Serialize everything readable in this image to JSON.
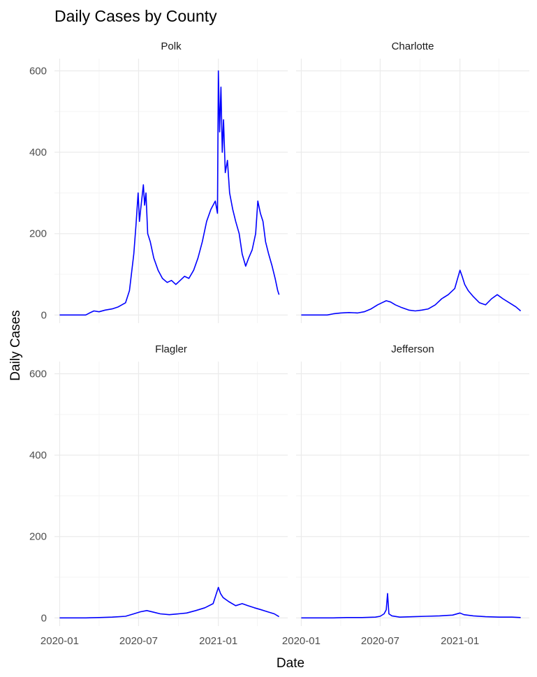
{
  "chart_data": {
    "type": "line",
    "title": "Daily Cases by County",
    "xlabel": "Date",
    "ylabel": "Daily Cases",
    "x_ticks": [
      "2020-01",
      "2020-07",
      "2021-01"
    ],
    "y_ticks": [
      0,
      200,
      400,
      600
    ],
    "xlim": [
      "2019-12-20",
      "2021-06-10"
    ],
    "ylim": [
      -20,
      630
    ],
    "facet_layout": "2x2",
    "grid": true,
    "line_color": "#0000ff",
    "panels": [
      {
        "name": "Polk",
        "points": [
          [
            "2020-01-01",
            0
          ],
          [
            "2020-03-01",
            0
          ],
          [
            "2020-03-10",
            5
          ],
          [
            "2020-03-20",
            10
          ],
          [
            "2020-04-01",
            8
          ],
          [
            "2020-04-15",
            12
          ],
          [
            "2020-05-01",
            15
          ],
          [
            "2020-05-15",
            20
          ],
          [
            "2020-06-01",
            30
          ],
          [
            "2020-06-10",
            60
          ],
          [
            "2020-06-20",
            150
          ],
          [
            "2020-06-25",
            220
          ],
          [
            "2020-06-30",
            300
          ],
          [
            "2020-07-03",
            230
          ],
          [
            "2020-07-06",
            260
          ],
          [
            "2020-07-09",
            290
          ],
          [
            "2020-07-12",
            320
          ],
          [
            "2020-07-15",
            270
          ],
          [
            "2020-07-18",
            300
          ],
          [
            "2020-07-22",
            200
          ],
          [
            "2020-07-28",
            180
          ],
          [
            "2020-08-05",
            140
          ],
          [
            "2020-08-15",
            110
          ],
          [
            "2020-08-25",
            90
          ],
          [
            "2020-09-05",
            80
          ],
          [
            "2020-09-15",
            85
          ],
          [
            "2020-09-25",
            75
          ],
          [
            "2020-10-05",
            85
          ],
          [
            "2020-10-15",
            95
          ],
          [
            "2020-10-25",
            90
          ],
          [
            "2020-11-05",
            110
          ],
          [
            "2020-11-15",
            140
          ],
          [
            "2020-11-25",
            180
          ],
          [
            "2020-12-05",
            230
          ],
          [
            "2020-12-15",
            260
          ],
          [
            "2020-12-25",
            280
          ],
          [
            "2020-12-30",
            250
          ],
          [
            "2021-01-01",
            600
          ],
          [
            "2021-01-04",
            450
          ],
          [
            "2021-01-07",
            560
          ],
          [
            "2021-01-10",
            400
          ],
          [
            "2021-01-13",
            480
          ],
          [
            "2021-01-17",
            350
          ],
          [
            "2021-01-22",
            380
          ],
          [
            "2021-01-27",
            300
          ],
          [
            "2021-02-03",
            260
          ],
          [
            "2021-02-10",
            230
          ],
          [
            "2021-02-18",
            200
          ],
          [
            "2021-02-25",
            150
          ],
          [
            "2021-03-05",
            120
          ],
          [
            "2021-03-12",
            140
          ],
          [
            "2021-03-20",
            160
          ],
          [
            "2021-03-28",
            200
          ],
          [
            "2021-04-02",
            280
          ],
          [
            "2021-04-08",
            250
          ],
          [
            "2021-04-14",
            230
          ],
          [
            "2021-04-20",
            180
          ],
          [
            "2021-04-27",
            150
          ],
          [
            "2021-05-05",
            120
          ],
          [
            "2021-05-12",
            90
          ],
          [
            "2021-05-18",
            60
          ],
          [
            "2021-05-21",
            50
          ]
        ]
      },
      {
        "name": "Charlotte",
        "points": [
          [
            "2020-01-01",
            0
          ],
          [
            "2020-03-01",
            0
          ],
          [
            "2020-03-15",
            3
          ],
          [
            "2020-04-01",
            5
          ],
          [
            "2020-04-20",
            6
          ],
          [
            "2020-05-10",
            5
          ],
          [
            "2020-05-25",
            8
          ],
          [
            "2020-06-10",
            15
          ],
          [
            "2020-06-25",
            25
          ],
          [
            "2020-07-05",
            30
          ],
          [
            "2020-07-15",
            35
          ],
          [
            "2020-07-25",
            32
          ],
          [
            "2020-08-05",
            25
          ],
          [
            "2020-08-20",
            18
          ],
          [
            "2020-09-05",
            12
          ],
          [
            "2020-09-20",
            10
          ],
          [
            "2020-10-05",
            12
          ],
          [
            "2020-10-20",
            15
          ],
          [
            "2020-11-05",
            25
          ],
          [
            "2020-11-20",
            40
          ],
          [
            "2020-12-05",
            50
          ],
          [
            "2020-12-20",
            65
          ],
          [
            "2021-01-01",
            110
          ],
          [
            "2021-01-06",
            95
          ],
          [
            "2021-01-12",
            75
          ],
          [
            "2021-01-20",
            60
          ],
          [
            "2021-02-01",
            45
          ],
          [
            "2021-02-15",
            30
          ],
          [
            "2021-03-01",
            25
          ],
          [
            "2021-03-15",
            40
          ],
          [
            "2021-03-28",
            50
          ],
          [
            "2021-04-10",
            40
          ],
          [
            "2021-04-25",
            30
          ],
          [
            "2021-05-10",
            20
          ],
          [
            "2021-05-21",
            10
          ]
        ]
      },
      {
        "name": "Flagler",
        "points": [
          [
            "2020-01-01",
            0
          ],
          [
            "2020-03-01",
            0
          ],
          [
            "2020-04-01",
            1
          ],
          [
            "2020-05-01",
            2
          ],
          [
            "2020-06-01",
            4
          ],
          [
            "2020-06-20",
            10
          ],
          [
            "2020-07-05",
            15
          ],
          [
            "2020-07-20",
            18
          ],
          [
            "2020-08-05",
            14
          ],
          [
            "2020-08-20",
            10
          ],
          [
            "2020-09-10",
            8
          ],
          [
            "2020-10-01",
            10
          ],
          [
            "2020-10-20",
            12
          ],
          [
            "2020-11-10",
            18
          ],
          [
            "2020-12-01",
            25
          ],
          [
            "2020-12-20",
            35
          ],
          [
            "2021-01-01",
            75
          ],
          [
            "2021-01-06",
            60
          ],
          [
            "2021-01-12",
            50
          ],
          [
            "2021-01-25",
            40
          ],
          [
            "2021-02-10",
            30
          ],
          [
            "2021-02-25",
            35
          ],
          [
            "2021-03-10",
            30
          ],
          [
            "2021-03-25",
            25
          ],
          [
            "2021-04-10",
            20
          ],
          [
            "2021-04-25",
            15
          ],
          [
            "2021-05-10",
            10
          ],
          [
            "2021-05-21",
            3
          ]
        ]
      },
      {
        "name": "Jefferson",
        "points": [
          [
            "2020-01-01",
            0
          ],
          [
            "2020-03-15",
            0
          ],
          [
            "2020-04-15",
            1
          ],
          [
            "2020-05-20",
            1
          ],
          [
            "2020-06-20",
            2
          ],
          [
            "2020-07-01",
            4
          ],
          [
            "2020-07-10",
            10
          ],
          [
            "2020-07-15",
            20
          ],
          [
            "2020-07-18",
            60
          ],
          [
            "2020-07-21",
            10
          ],
          [
            "2020-07-28",
            5
          ],
          [
            "2020-08-15",
            2
          ],
          [
            "2020-09-15",
            3
          ],
          [
            "2020-10-15",
            4
          ],
          [
            "2020-11-15",
            5
          ],
          [
            "2020-12-15",
            7
          ],
          [
            "2021-01-01",
            12
          ],
          [
            "2021-01-10",
            8
          ],
          [
            "2021-02-01",
            5
          ],
          [
            "2021-03-01",
            3
          ],
          [
            "2021-04-01",
            2
          ],
          [
            "2021-05-01",
            2
          ],
          [
            "2021-05-21",
            1
          ]
        ]
      }
    ]
  }
}
